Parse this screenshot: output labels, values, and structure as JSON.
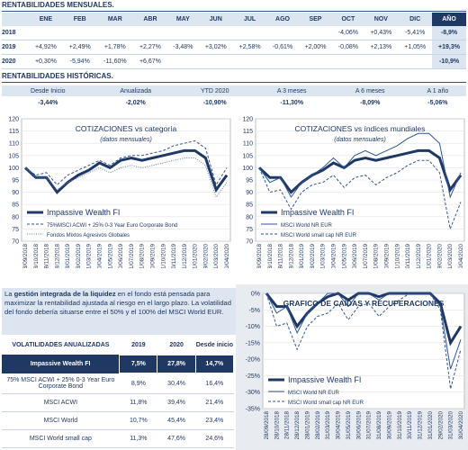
{
  "monthly": {
    "title": "RENTABILIDADES MENSUALES.",
    "header": [
      "ENE",
      "FEB",
      "MAR",
      "ABR",
      "MAY",
      "JUN",
      "JUL",
      "AGO",
      "SEP",
      "OCT",
      "NOV",
      "DIC",
      "AÑO"
    ],
    "rows": [
      {
        "year": "2018",
        "cells": [
          null,
          null,
          null,
          null,
          null,
          null,
          null,
          null,
          null,
          "-4,06%",
          "+0,43%",
          "-5,41%",
          "-8,9%"
        ]
      },
      {
        "year": "2019",
        "cells": [
          "+4,92%",
          "+2,49%",
          "+1,78%",
          "+2,27%",
          "-3,48%",
          "+3,02%",
          "+2,58%",
          "-0,61%",
          "+2,00%",
          "-0,08%",
          "+2,13%",
          "+1,05%",
          "+19,3%"
        ]
      },
      {
        "year": "2020",
        "cells": [
          "+0,30%",
          "-5,94%",
          "-11,60%",
          "+6,67%",
          null,
          null,
          null,
          null,
          null,
          null,
          null,
          null,
          "-10,9%"
        ]
      }
    ]
  },
  "historic": {
    "title": "RENTABILIDADES HISTÓRICAS.",
    "header": [
      "Desde Inicio",
      "Anualizada",
      "YTD 2020",
      "A 3 meses",
      "A 6 meses",
      "A 1 año"
    ],
    "values": [
      "-3,44%",
      "-2,02%",
      "-10,90%",
      "-11,30%",
      "-8,09%",
      "-5,06%"
    ]
  },
  "paragraph": [
    "La ",
    "gestión integrada de la liquidez",
    " en el fondo está pensada para maximizar la rentabilidad ajustada al riesgo en el largo plazo. La volatilidad del fondo debería situarse entre el 50% y el 100% del MSCI World EUR."
  ],
  "volatility": {
    "header": [
      "VOLATILIDADES ANUALIZADAS",
      "2019",
      "2020",
      "Desde inicio"
    ],
    "rows": [
      [
        "Impassive Wealth FI",
        "7,5%",
        "27,8%",
        "14,7%"
      ],
      [
        "75% MSCI ACWI + 25% 0-3 Year Euro Corporate Bond",
        "8,9%",
        "30,4%",
        "16,4%"
      ],
      [
        "MSCI ACWI",
        "11,8%",
        "39,4%",
        "21,4%"
      ],
      [
        "MSCI World",
        "10,7%",
        "45,4%",
        "23,4%"
      ],
      [
        "MSCI World small cap",
        "11,3%",
        "47,6%",
        "24,6%"
      ]
    ]
  },
  "chart_data": [
    {
      "type": "line",
      "title": "COTIZACIONES vs categoría",
      "subtitle": "(datos mensuales)",
      "grid": true,
      "legend": "lower left",
      "categories": [
        "28/09/2018",
        "28/10/2018",
        "28/11/2018",
        "28/12/2018",
        "28/01/2019",
        "28/02/2019",
        "31/03/2019",
        "30/04/2019",
        "31/05/2019",
        "30/06/2019",
        "31/07/2019",
        "31/08/2019",
        "30/09/2019",
        "31/10/2019",
        "30/11/2019",
        "31/12/2019",
        "31/01/2020",
        "29/02/2020",
        "31/03/2020",
        "30/04/2020"
      ],
      "ylim": [
        70,
        120
      ],
      "yticks": [
        70,
        75,
        80,
        85,
        90,
        95,
        100,
        105,
        110,
        115,
        120
      ],
      "series": [
        {
          "name": "Impassive Wealth FI",
          "color": "#1f3864",
          "style": "thick",
          "values": [
            100,
            96,
            96,
            90,
            94,
            97,
            99,
            102,
            100,
            103,
            104,
            103,
            104,
            105,
            106,
            107,
            107,
            104,
            91,
            97
          ]
        },
        {
          "name": "75%MSCI ACWI + 25% 0-3 Year Euro Corporate Bond",
          "color": "#2f5597",
          "style": "dashed",
          "values": [
            100,
            97,
            98,
            93,
            97,
            99,
            101,
            103,
            101,
            104,
            105,
            105,
            106,
            107,
            109,
            110,
            111,
            108,
            93,
            100
          ]
        },
        {
          "name": "Fondos Mixtos Agresivos Globales",
          "color": "#5b7fbf",
          "style": "dotted",
          "values": [
            100,
            96,
            96,
            91,
            94,
            96,
            98,
            100,
            98,
            100,
            101,
            100,
            101,
            102,
            103,
            104,
            104,
            101,
            88,
            94
          ]
        }
      ]
    },
    {
      "type": "line",
      "title": "COTIZACIONES vs índices mundiales",
      "subtitle": "(datos mensuales)",
      "grid": true,
      "legend": "lower left",
      "categories": [
        "28/09/2018",
        "28/10/2018",
        "28/11/2018",
        "28/12/2018",
        "28/01/2019",
        "28/02/2019",
        "31/03/2019",
        "30/04/2019",
        "31/05/2019",
        "30/06/2019",
        "31/07/2019",
        "31/08/2019",
        "30/09/2019",
        "31/10/2019",
        "30/11/2019",
        "31/12/2019",
        "31/01/2020",
        "29/02/2020",
        "31/03/2020",
        "30/04/2020"
      ],
      "ylim": [
        70,
        120
      ],
      "yticks": [
        70,
        75,
        80,
        85,
        90,
        95,
        100,
        105,
        110,
        115,
        120
      ],
      "series": [
        {
          "name": "Impassive Wealth FI",
          "color": "#1f3864",
          "style": "thick",
          "values": [
            100,
            96,
            96,
            90,
            94,
            97,
            99,
            102,
            100,
            103,
            104,
            103,
            104,
            105,
            106,
            107,
            107,
            104,
            91,
            97
          ]
        },
        {
          "name": "MSCI World NR EUR",
          "color": "#2f5597",
          "style": "thin",
          "values": [
            100,
            94,
            96,
            88,
            94,
            97,
            100,
            104,
            100,
            105,
            107,
            105,
            107,
            109,
            112,
            114,
            114,
            110,
            88,
            98
          ]
        },
        {
          "name": "MSCI World small cap NR EUR",
          "color": "#2f5597",
          "style": "dashed",
          "values": [
            100,
            90,
            91,
            83,
            90,
            93,
            94,
            97,
            92,
            96,
            97,
            93,
            96,
            98,
            101,
            103,
            103,
            98,
            75,
            86
          ]
        }
      ]
    },
    {
      "type": "line",
      "title": "GRAFICO DE CAÍDAS Y RECUPERACIONES",
      "grid": true,
      "legend": "lower left",
      "categories": [
        "28/09/2018",
        "28/10/2018",
        "28/11/2018",
        "28/12/2018",
        "28/01/2019",
        "28/02/2019",
        "31/03/2019",
        "30/04/2019",
        "31/05/2019",
        "30/06/2019",
        "31/07/2019",
        "31/08/2019",
        "30/09/2019",
        "31/10/2019",
        "30/11/2019",
        "31/12/2019",
        "31/01/2020",
        "29/02/2020",
        "31/03/2020",
        "30/04/2020"
      ],
      "ylim": [
        -35,
        0
      ],
      "yticks": [
        {
          "value": 0,
          "label": "0%"
        },
        {
          "value": -5,
          "label": "-5%"
        },
        {
          "value": -10,
          "label": "-10%"
        },
        {
          "value": -15,
          "label": "-15%"
        },
        {
          "value": -20,
          "label": "-20%"
        },
        {
          "value": -25,
          "label": "-25%"
        },
        {
          "value": -30,
          "label": "-30%"
        },
        {
          "value": -35,
          "label": "-35%"
        }
      ],
      "series": [
        {
          "name": "Impassive Wealth FI",
          "color": "#1f3864",
          "style": "thick",
          "values": [
            0,
            -4,
            -4,
            -10,
            -6,
            -3,
            -1,
            0,
            -2,
            0,
            0,
            -1,
            0,
            0,
            0,
            0,
            0,
            -3,
            -15,
            -10
          ]
        },
        {
          "name": "MSCI World NR EUR",
          "color": "#2f5597",
          "style": "thin",
          "values": [
            0,
            -6,
            -4,
            -12,
            -6,
            -3,
            0,
            0,
            -4,
            0,
            0,
            -2,
            0,
            0,
            0,
            0,
            0,
            -4,
            -23,
            -14
          ]
        },
        {
          "name": "MSCI World small cap NR EUR",
          "color": "#2f5597",
          "style": "dashed",
          "values": [
            0,
            -10,
            -9,
            -17,
            -10,
            -7,
            -6,
            -3,
            -8,
            -4,
            -3,
            -7,
            -4,
            -2,
            0,
            0,
            0,
            -5,
            -29,
            -17
          ]
        }
      ]
    }
  ]
}
